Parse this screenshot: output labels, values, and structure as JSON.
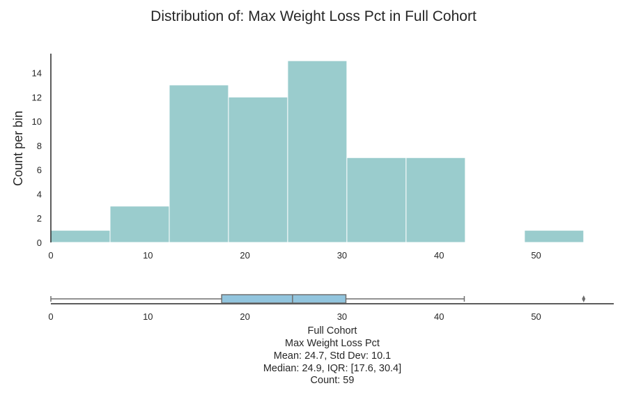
{
  "chart_data": {
    "type": "histogram",
    "title": "Distribution of: Max Weight Loss Pct in Full Cohort",
    "xlabel": "",
    "ylabel": "Count per bin",
    "xlim": [
      0,
      58
    ],
    "ylim": [
      0,
      15.7
    ],
    "x_ticks": [
      "0",
      "10",
      "20",
      "30",
      "40",
      "50"
    ],
    "y_ticks": [
      "0",
      "2",
      "4",
      "6",
      "8",
      "10",
      "12",
      "14"
    ],
    "bin_edges": [
      0,
      6.1,
      12.2,
      18.3,
      24.4,
      30.5,
      36.6,
      42.7,
      48.8,
      54.9
    ],
    "counts": [
      1,
      3,
      13,
      12,
      15,
      7,
      7,
      0,
      1
    ],
    "bar_color": "#9acccd",
    "boxplot": {
      "min": 0,
      "q1": 17.6,
      "median": 24.9,
      "q3": 30.4,
      "whisker_high": 42.6,
      "outliers": [
        54.9
      ],
      "box_color": "#92c5de"
    },
    "summary": {
      "group": "Full Cohort",
      "variable": "Max Weight Loss Pct",
      "mean_std": "Mean: 24.7, Std Dev: 10.1",
      "median_iqr": "Median: 24.9, IQR: [17.6, 30.4]",
      "count": "Count: 59"
    }
  }
}
